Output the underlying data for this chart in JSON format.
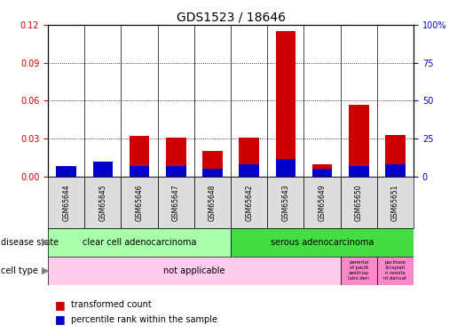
{
  "title": "GDS1523 / 18646",
  "samples": [
    "GSM65644",
    "GSM65645",
    "GSM65646",
    "GSM65647",
    "GSM65648",
    "GSM65642",
    "GSM65643",
    "GSM65649",
    "GSM65650",
    "GSM65651"
  ],
  "transformed_count": [
    0.002,
    0.012,
    0.032,
    0.031,
    0.02,
    0.031,
    0.115,
    0.01,
    0.057,
    0.033
  ],
  "percentile_rank_scaled": [
    0.008,
    0.012,
    0.008,
    0.008,
    0.006,
    0.01,
    0.014,
    0.006,
    0.008,
    0.01
  ],
  "ylim_left": [
    0,
    0.12
  ],
  "ylim_right": [
    0,
    100
  ],
  "yticks_left": [
    0,
    0.03,
    0.06,
    0.09,
    0.12
  ],
  "yticks_right": [
    0,
    25,
    50,
    75,
    100
  ],
  "disease_state_groups": [
    {
      "label": "clear cell adenocarcinoma",
      "start": 0,
      "end": 5,
      "color": "#aaffaa"
    },
    {
      "label": "serous adenocarcinoma",
      "start": 5,
      "end": 10,
      "color": "#44dd44"
    }
  ],
  "cell_type_not_applicable": {
    "start": 0,
    "end": 8,
    "color": "#ffccee",
    "label": "not applicable"
  },
  "cell_type_parental": {
    "start": 8,
    "end": 9,
    "color": "#ff88cc",
    "text": "parental\nof paclit\naxel/cisp\nlatin deri"
  },
  "cell_type_resistant": {
    "start": 9,
    "end": 10,
    "color": "#ff88cc",
    "text": "paclitaxe\nl/cisplati\nn resista\nnt derivat"
  },
  "bar_color_red": "#cc0000",
  "bar_color_blue": "#0000cc",
  "sample_box_color": "#dddddd",
  "tick_color_left": "#cc0000",
  "tick_color_right": "#0000cc",
  "title_fontsize": 10,
  "label_fontsize": 7,
  "tick_fontsize": 7,
  "sample_fontsize": 5.5
}
